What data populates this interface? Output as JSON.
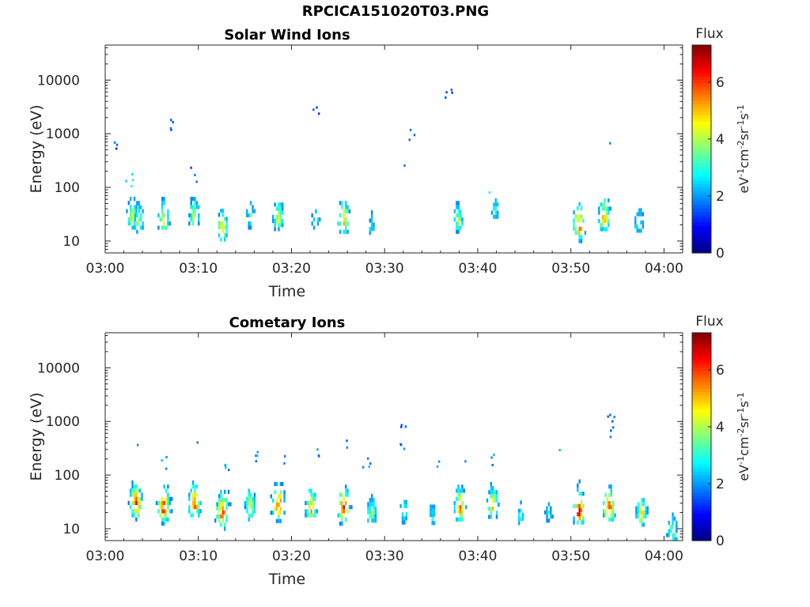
{
  "figure": {
    "title": "RPCICA151020T03.PNG"
  },
  "colormap": {
    "name": "jet",
    "stops": [
      "#00008f",
      "#0000ff",
      "#00ffff",
      "#ffff00",
      "#ff0000",
      "#800000"
    ]
  },
  "chart_data": [
    {
      "type": "heatmap",
      "title": "Solar Wind Ions",
      "xlabel": "Time",
      "ylabel": "Energy (eV)",
      "x_ticks": [
        "03:00",
        "03:10",
        "03:20",
        "03:30",
        "03:40",
        "03:50",
        "04:00"
      ],
      "x_range_minutes": [
        0,
        62
      ],
      "y_scale": "log",
      "y_ticks": [
        "10",
        "100",
        "1000",
        "10000"
      ],
      "y_range": [
        6,
        45000
      ],
      "colorbar": {
        "title": "Flux",
        "label": "eV-1cm-2sr-1s-1",
        "ticks": [
          "0",
          "2",
          "4",
          "6"
        ],
        "range": [
          0,
          7.3
        ]
      },
      "blobs": [
        {
          "t": 2.8,
          "e": 30,
          "v": 4.5
        },
        {
          "t": 3.5,
          "e": 25,
          "v": 4.0
        },
        {
          "t": 6.2,
          "e": 25,
          "v": 5.0
        },
        {
          "t": 9.5,
          "e": 30,
          "v": 4.5
        },
        {
          "t": 12.5,
          "e": 18,
          "v": 4.8
        },
        {
          "t": 15.5,
          "e": 30,
          "v": 3.5
        },
        {
          "t": 18.5,
          "e": 28,
          "v": 4.5
        },
        {
          "t": 22.5,
          "e": 25,
          "v": 3.0
        },
        {
          "t": 25.5,
          "e": 25,
          "v": 5.5
        },
        {
          "t": 28.5,
          "e": 20,
          "v": 2.8
        },
        {
          "t": 37.8,
          "e": 25,
          "v": 4.0
        },
        {
          "t": 41.8,
          "e": 40,
          "v": 3.0
        },
        {
          "t": 50.8,
          "e": 20,
          "v": 6.2
        },
        {
          "t": 53.5,
          "e": 28,
          "v": 5.5
        },
        {
          "t": 57.2,
          "e": 22,
          "v": 3.5
        }
      ],
      "scatter": [
        {
          "t": 1.2,
          "e": 620,
          "v": 1.5
        },
        {
          "t": 2.5,
          "e": 150,
          "v": 2.5
        },
        {
          "t": 6.8,
          "e": 1450,
          "v": 1.5
        },
        {
          "t": 9.5,
          "e": 180,
          "v": 1.5
        },
        {
          "t": 22.5,
          "e": 2600,
          "v": 1.5
        },
        {
          "t": 32.2,
          "e": 260,
          "v": 1.5
        },
        {
          "t": 32.8,
          "e": 950,
          "v": 1.5
        },
        {
          "t": 33.0,
          "e": 620,
          "v": 1.5
        },
        {
          "t": 36.8,
          "e": 5600,
          "v": 1.5
        },
        {
          "t": 41.5,
          "e": 90,
          "v": 2.5
        },
        {
          "t": 53.8,
          "e": 800,
          "v": 2.0
        }
      ]
    },
    {
      "type": "heatmap",
      "title": "Cometary Ions",
      "xlabel": "Time",
      "ylabel": "Energy (eV)",
      "x_ticks": [
        "03:00",
        "03:10",
        "03:20",
        "03:30",
        "03:40",
        "03:50",
        "04:00"
      ],
      "x_range_minutes": [
        0,
        62
      ],
      "y_scale": "log",
      "y_ticks": [
        "10",
        "100",
        "1000",
        "10000"
      ],
      "y_range": [
        6,
        45000
      ],
      "colorbar": {
        "title": "Flux",
        "label": "eV-1cm-2sr-1s-1",
        "ticks": [
          "0",
          "2",
          "4",
          "6"
        ],
        "range": [
          0,
          7.3
        ]
      },
      "blobs": [
        {
          "t": 3.2,
          "e": 30,
          "v": 6.5
        },
        {
          "t": 6.2,
          "e": 25,
          "v": 6.5
        },
        {
          "t": 9.5,
          "e": 30,
          "v": 6.0
        },
        {
          "t": 12.5,
          "e": 20,
          "v": 6.5
        },
        {
          "t": 15.5,
          "e": 25,
          "v": 5.0
        },
        {
          "t": 18.5,
          "e": 28,
          "v": 6.5
        },
        {
          "t": 22.0,
          "e": 25,
          "v": 5.5
        },
        {
          "t": 25.5,
          "e": 25,
          "v": 6.5
        },
        {
          "t": 28.5,
          "e": 20,
          "v": 4.0
        },
        {
          "t": 32.0,
          "e": 22,
          "v": 3.5
        },
        {
          "t": 35.0,
          "e": 18,
          "v": 3.0
        },
        {
          "t": 38.0,
          "e": 25,
          "v": 6.0
        },
        {
          "t": 41.5,
          "e": 28,
          "v": 5.0
        },
        {
          "t": 44.5,
          "e": 18,
          "v": 3.0
        },
        {
          "t": 47.5,
          "e": 20,
          "v": 3.0
        },
        {
          "t": 50.8,
          "e": 22,
          "v": 6.8
        },
        {
          "t": 54.0,
          "e": 25,
          "v": 6.5
        },
        {
          "t": 57.5,
          "e": 20,
          "v": 5.0
        },
        {
          "t": 60.8,
          "e": 9,
          "v": 4.0
        }
      ],
      "scatter": [
        {
          "t": 3.2,
          "e": 400,
          "v": 2.0
        },
        {
          "t": 6.2,
          "e": 180,
          "v": 2.0
        },
        {
          "t": 9.5,
          "e": 350,
          "v": 2.0
        },
        {
          "t": 12.8,
          "e": 150,
          "v": 2.0
        },
        {
          "t": 16.0,
          "e": 250,
          "v": 2.0
        },
        {
          "t": 18.8,
          "e": 220,
          "v": 2.0
        },
        {
          "t": 22.5,
          "e": 300,
          "v": 2.0
        },
        {
          "t": 25.5,
          "e": 350,
          "v": 2.0
        },
        {
          "t": 28.0,
          "e": 200,
          "v": 2.0
        },
        {
          "t": 32.0,
          "e": 400,
          "v": 1.8
        },
        {
          "t": 32.0,
          "e": 750,
          "v": 1.5
        },
        {
          "t": 35.5,
          "e": 200,
          "v": 2.0
        },
        {
          "t": 38.5,
          "e": 250,
          "v": 2.0
        },
        {
          "t": 41.5,
          "e": 200,
          "v": 2.0
        },
        {
          "t": 48.5,
          "e": 350,
          "v": 2.0
        },
        {
          "t": 54.3,
          "e": 600,
          "v": 1.8
        },
        {
          "t": 54.3,
          "e": 1100,
          "v": 1.5
        }
      ]
    }
  ]
}
